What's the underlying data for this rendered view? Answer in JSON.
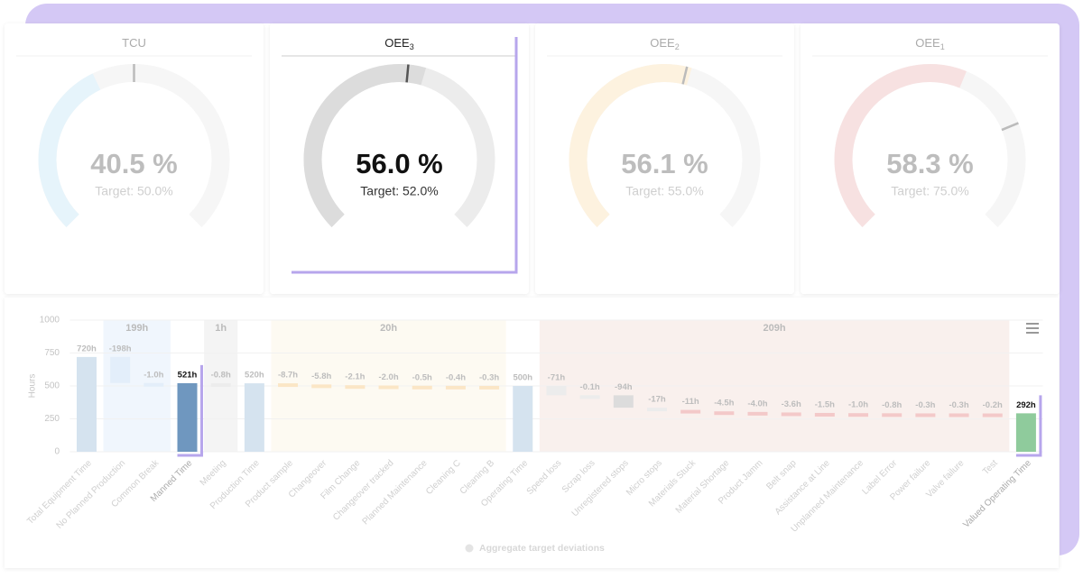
{
  "gauges": [
    {
      "title": "TCU",
      "subscript": null,
      "value": 40.5,
      "value_label": "40.5 %",
      "target": 50.0,
      "target_label": "Target: 50.0%",
      "color": "#e6f4fb",
      "highlight": false
    },
    {
      "title": "OEE",
      "subscript": "3",
      "value": 56.0,
      "value_label": "56.0 %",
      "target": 52.0,
      "target_label": "Target: 52.0%",
      "color": "#dcdcdc",
      "highlight": true
    },
    {
      "title": "OEE",
      "subscript": "2",
      "value": 56.1,
      "value_label": "56.1 %",
      "target": 55.0,
      "target_label": "Target: 55.0%",
      "color": "#fdf2df",
      "highlight": false
    },
    {
      "title": "OEE",
      "subscript": "1",
      "value": 58.3,
      "value_label": "58.3 %",
      "target": 75.0,
      "target_label": "Target: 75.0%",
      "color": "#f7e1e1",
      "highlight": false
    }
  ],
  "chart_data": {
    "type": "waterfall",
    "y_label": "Hours",
    "ylim": [
      0,
      1000
    ],
    "yticks": [
      0,
      250,
      500,
      750,
      1000
    ],
    "categories": [
      "Total Equipment Time",
      "No Planned Production",
      "Common Break",
      "Manned Time",
      "Meeting",
      "Production Time",
      "Product sample",
      "Changeover",
      "Film Change",
      "Changeover tracked",
      "Planned Maintenance",
      "Cleaning C",
      "Cleaning B",
      "Operating Time",
      "Speed loss",
      "Scrap loss",
      "Unregistered stops",
      "Micro stops",
      "Materials Stuck",
      "Material Shortage",
      "Product Jamm",
      "Belt snap",
      "Assistance at Line",
      "Unplanned Maintenance",
      "Label Error",
      "Power failure",
      "Valve failure",
      "Test",
      "Valued Operating Time"
    ],
    "values": [
      720,
      -198,
      -1.0,
      521,
      -0.8,
      520,
      -8.7,
      -5.8,
      -2.1,
      -2.0,
      -0.5,
      -0.4,
      -0.3,
      500,
      -71,
      -0.1,
      -94,
      -17,
      -11,
      -4.5,
      -4.0,
      -3.6,
      -1.5,
      -1.0,
      -0.8,
      -0.3,
      -0.3,
      -0.2,
      292
    ],
    "value_labels": [
      "720h",
      "-198h",
      "-1.0h",
      "521h",
      "-0.8h",
      "520h",
      "-8.7h",
      "-5.8h",
      "-2.1h",
      "-2.0h",
      "-0.5h",
      "-0.4h",
      "-0.3h",
      "500h",
      "-71h",
      "-0.1h",
      "-94h",
      "-17h",
      "-11h",
      "-4.5h",
      "-4.0h",
      "-3.6h",
      "-1.5h",
      "-1.0h",
      "-0.8h",
      "-0.3h",
      "-0.3h",
      "-0.2h",
      "292h"
    ],
    "kinds": [
      "total",
      "delta",
      "delta",
      "total",
      "delta",
      "total",
      "delta",
      "delta",
      "delta",
      "delta",
      "delta",
      "delta",
      "delta",
      "total",
      "delta",
      "delta",
      "delta",
      "delta",
      "delta",
      "delta",
      "delta",
      "delta",
      "delta",
      "delta",
      "delta",
      "delta",
      "delta",
      "delta",
      "total"
    ],
    "colors": [
      "#d5e3ef",
      "#e3eefa",
      "#e3eefa",
      "#6f97bf",
      "#ececec",
      "#d5e3ef",
      "#fbe6c6",
      "#fbe6c6",
      "#fbe6c6",
      "#fbe6c6",
      "#fbe6c6",
      "#fbe6c6",
      "#fbe6c6",
      "#d5e3ef",
      "#ececec",
      "#ececec",
      "#dcdcdc",
      "#ececec",
      "#f3c9c9",
      "#f3c9c9",
      "#f3c9c9",
      "#f3c9c9",
      "#f3c9c9",
      "#f3c9c9",
      "#f3c9c9",
      "#f3c9c9",
      "#f3c9c9",
      "#f3c9c9",
      "#8fcb9c"
    ],
    "highlight": [
      3,
      28
    ],
    "groups": [
      {
        "label": "199h",
        "value": 199,
        "start": 1,
        "end": 2,
        "color": "#f0f6fd"
      },
      {
        "label": "1h",
        "value": 1,
        "start": 4,
        "end": 4,
        "color": "#f4f4f4"
      },
      {
        "label": "20h",
        "value": 20,
        "start": 6,
        "end": 12,
        "color": "#fdfaf2"
      },
      {
        "label": "209h",
        "value": 209,
        "start": 14,
        "end": 27,
        "color": "#f9f0ed"
      }
    ],
    "legend": "Aggregate target deviations",
    "grid": true
  }
}
